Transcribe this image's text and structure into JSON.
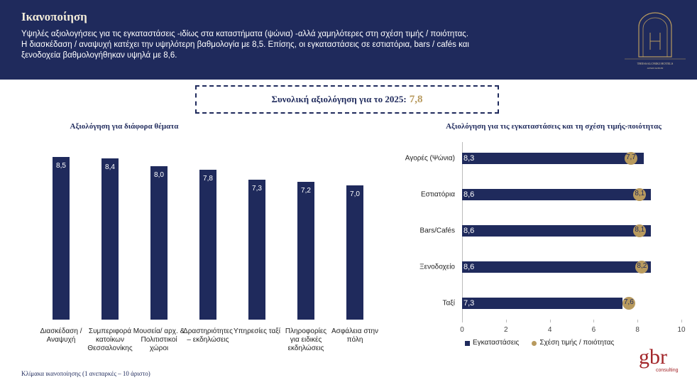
{
  "header": {
    "title": "Ικανοποίηση",
    "subtitle": [
      "Υψηλές αξιολογήσεις για τις εγκαταστάσεις -ιδίως στα καταστήματα (ψώνια) -αλλά χαμηλότερες στη σχέση τιμής / ποιότητας.",
      "Η διασκέδαση / αναψυχή κατέχει την υψηλότερη βαθμολογία με 8,5. Επίσης, οι εγκαταστάσεις σε εστιατόρια, bars / cafés και",
      "ξενοδοχεία βαθμολογήθηκαν υψηλά με 8,6."
    ],
    "logo_text": [
      "THESSALONIKI HOTELS",
      "ASSOCIATION"
    ]
  },
  "summary": {
    "label": "Συνολική αξιολόγηση για το 2025:",
    "value": "7,8"
  },
  "chart_data": [
    {
      "type": "bar",
      "title": "Αξιολόγηση για διάφορα θέματα",
      "categories": [
        "Διασκέδαση / Αναψυχή",
        "Συμπεριφορά κατοίκων Θεσσαλονίκης",
        "Μουσεία/ αρχ. & Πολιτιστικοί χώροι",
        "Δραστηριότητες – εκδηλώσεις",
        "Υπηρεσίες ταξί",
        "Πληροφορίες για ειδικές εκδηλώσεις",
        "Ασφάλεια στην πόλη"
      ],
      "values": [
        8.5,
        8.4,
        8.0,
        7.8,
        7.3,
        7.2,
        7.0
      ],
      "value_labels": [
        "8,5",
        "8,4",
        "8,0",
        "7,8",
        "7,3",
        "7,2",
        "7,0"
      ],
      "color": "#1f2a5c"
    },
    {
      "type": "barh",
      "title": "Αξιολόγηση για τις εγκαταστάσεις και τη σχέση τιμής-ποιότητας",
      "categories": [
        "Αγορές (Ψώνια)",
        "Εστιατόρια",
        "Bars/Cafés",
        "Ξενοδοχείο",
        "Ταξί"
      ],
      "series": [
        {
          "name": "Εγκαταστάσεις",
          "color": "#1f2a5c",
          "style": "bar",
          "values": [
            8.3,
            8.6,
            8.6,
            8.6,
            7.3
          ],
          "value_labels": [
            "8,3",
            "8,6",
            "8,6",
            "8,6",
            "7,3"
          ]
        },
        {
          "name": "Σχέση τιμής / ποιότητας",
          "color": "#b89a5e",
          "style": "dot",
          "values": [
            7.7,
            8.1,
            8.1,
            8.2,
            7.6
          ],
          "value_labels": [
            "7,7",
            "8,1",
            "8,1",
            "8,2",
            "7,6"
          ]
        }
      ],
      "xlim": [
        0,
        10
      ],
      "xticks": [
        0,
        2,
        4,
        6,
        8,
        10
      ],
      "legend": "bottom"
    }
  ],
  "footnote": "Κλίμακα ικανοποίησης (1 ανεπαρκές – 10 άριστο)",
  "brand": {
    "name": "gbr",
    "tagline": "consulting"
  }
}
